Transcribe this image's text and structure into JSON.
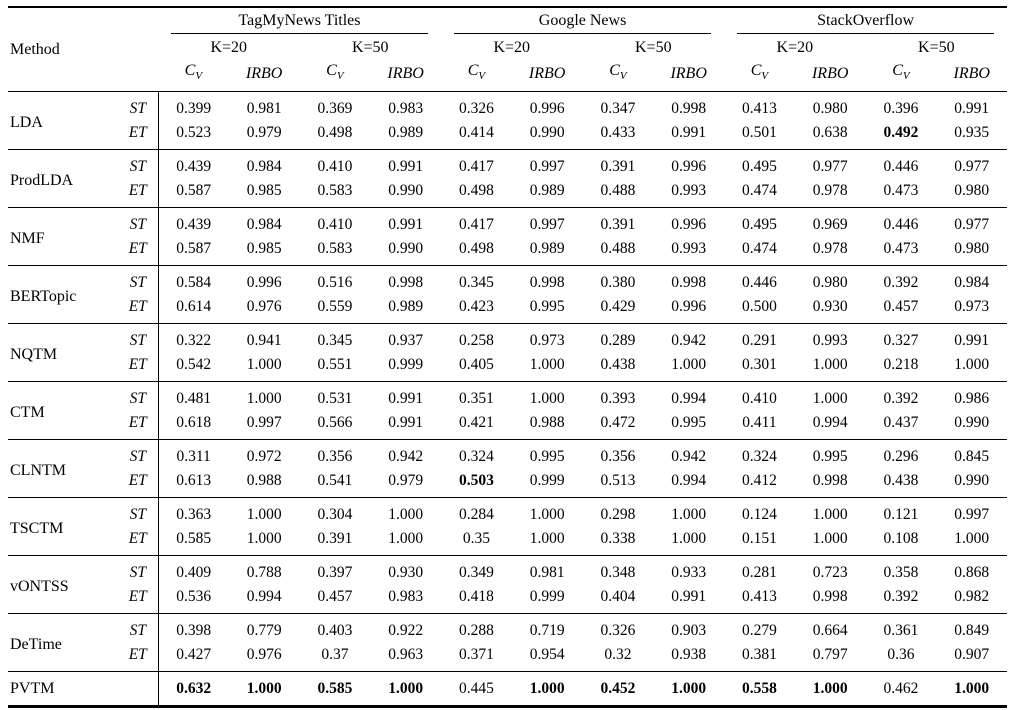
{
  "table": {
    "method_header": "Method",
    "datasets": [
      "TagMyNews Titles",
      "Google News",
      "StackOverflow"
    ],
    "k_headers": [
      "K=20",
      "K=50"
    ],
    "metrics": [
      {
        "base": "C",
        "sub": "V"
      },
      {
        "base": "IRBO",
        "sub": ""
      }
    ],
    "groups": [
      {
        "method": "LDA",
        "rows": [
          {
            "variant": "ST",
            "values": [
              "0.399",
              "0.981",
              "0.369",
              "0.983",
              "0.326",
              "0.996",
              "0.347",
              "0.998",
              "0.413",
              "0.980",
              "0.396",
              "0.991"
            ],
            "bold": []
          },
          {
            "variant": "ET",
            "values": [
              "0.523",
              "0.979",
              "0.498",
              "0.989",
              "0.414",
              "0.990",
              "0.433",
              "0.991",
              "0.501",
              "0.638",
              "0.492",
              "0.935"
            ],
            "bold": [
              10
            ]
          }
        ]
      },
      {
        "method": "ProdLDA",
        "rows": [
          {
            "variant": "ST",
            "values": [
              "0.439",
              "0.984",
              "0.410",
              "0.991",
              "0.417",
              "0.997",
              "0.391",
              "0.996",
              "0.495",
              "0.977",
              "0.446",
              "0.977"
            ],
            "bold": []
          },
          {
            "variant": "ET",
            "values": [
              "0.587",
              "0.985",
              "0.583",
              "0.990",
              "0.498",
              "0.989",
              "0.488",
              "0.993",
              "0.474",
              "0.978",
              "0.473",
              "0.980"
            ],
            "bold": []
          }
        ]
      },
      {
        "method": "NMF",
        "rows": [
          {
            "variant": "ST",
            "values": [
              "0.439",
              "0.984",
              "0.410",
              "0.991",
              "0.417",
              "0.997",
              "0.391",
              "0.996",
              "0.495",
              "0.969",
              "0.446",
              "0.977"
            ],
            "bold": []
          },
          {
            "variant": "ET",
            "values": [
              "0.587",
              "0.985",
              "0.583",
              "0.990",
              "0.498",
              "0.989",
              "0.488",
              "0.993",
              "0.474",
              "0.978",
              "0.473",
              "0.980"
            ],
            "bold": []
          }
        ]
      },
      {
        "method": "BERTopic",
        "rows": [
          {
            "variant": "ST",
            "values": [
              "0.584",
              "0.996",
              "0.516",
              "0.998",
              "0.345",
              "0.998",
              "0.380",
              "0.998",
              "0.446",
              "0.980",
              "0.392",
              "0.984"
            ],
            "bold": []
          },
          {
            "variant": "ET",
            "values": [
              "0.614",
              "0.976",
              "0.559",
              "0.989",
              "0.423",
              "0.995",
              "0.429",
              "0.996",
              "0.500",
              "0.930",
              "0.457",
              "0.973"
            ],
            "bold": []
          }
        ]
      },
      {
        "method": "NQTM",
        "rows": [
          {
            "variant": "ST",
            "values": [
              "0.322",
              "0.941",
              "0.345",
              "0.937",
              "0.258",
              "0.973",
              "0.289",
              "0.942",
              "0.291",
              "0.993",
              "0.327",
              "0.991"
            ],
            "bold": []
          },
          {
            "variant": "ET",
            "values": [
              "0.542",
              "1.000",
              "0.551",
              "0.999",
              "0.405",
              "1.000",
              "0.438",
              "1.000",
              "0.301",
              "1.000",
              "0.218",
              "1.000"
            ],
            "bold": []
          }
        ]
      },
      {
        "method": "CTM",
        "rows": [
          {
            "variant": "ST",
            "values": [
              "0.481",
              "1.000",
              "0.531",
              "0.991",
              "0.351",
              "1.000",
              "0.393",
              "0.994",
              "0.410",
              "1.000",
              "0.392",
              "0.986"
            ],
            "bold": []
          },
          {
            "variant": "ET",
            "values": [
              "0.618",
              "0.997",
              "0.566",
              "0.991",
              "0.421",
              "0.988",
              "0.472",
              "0.995",
              "0.411",
              "0.994",
              "0.437",
              "0.990"
            ],
            "bold": []
          }
        ]
      },
      {
        "method": "CLNTM",
        "rows": [
          {
            "variant": "ST",
            "values": [
              "0.311",
              "0.972",
              "0.356",
              "0.942",
              "0.324",
              "0.995",
              "0.356",
              "0.942",
              "0.324",
              "0.995",
              "0.296",
              "0.845"
            ],
            "bold": []
          },
          {
            "variant": "ET",
            "values": [
              "0.613",
              "0.988",
              "0.541",
              "0.979",
              "0.503",
              "0.999",
              "0.513",
              "0.994",
              "0.412",
              "0.998",
              "0.438",
              "0.990"
            ],
            "bold": [
              4
            ]
          }
        ]
      },
      {
        "method": "TSCTM",
        "rows": [
          {
            "variant": "ST",
            "values": [
              "0.363",
              "1.000",
              "0.304",
              "1.000",
              "0.284",
              "1.000",
              "0.298",
              "1.000",
              "0.124",
              "1.000",
              "0.121",
              "0.997"
            ],
            "bold": []
          },
          {
            "variant": "ET",
            "values": [
              "0.585",
              "1.000",
              "0.391",
              "1.000",
              "0.35",
              "1.000",
              "0.338",
              "1.000",
              "0.151",
              "1.000",
              "0.108",
              "1.000"
            ],
            "bold": []
          }
        ]
      },
      {
        "method": "vONTSS",
        "rows": [
          {
            "variant": "ST",
            "values": [
              "0.409",
              "0.788",
              "0.397",
              "0.930",
              "0.349",
              "0.981",
              "0.348",
              "0.933",
              "0.281",
              "0.723",
              "0.358",
              "0.868"
            ],
            "bold": []
          },
          {
            "variant": "ET",
            "values": [
              "0.536",
              "0.994",
              "0.457",
              "0.983",
              "0.418",
              "0.999",
              "0.404",
              "0.991",
              "0.413",
              "0.998",
              "0.392",
              "0.982"
            ],
            "bold": []
          }
        ]
      },
      {
        "method": "DeTime",
        "rows": [
          {
            "variant": "ST",
            "values": [
              "0.398",
              "0.779",
              "0.403",
              "0.922",
              "0.288",
              "0.719",
              "0.326",
              "0.903",
              "0.279",
              "0.664",
              "0.361",
              "0.849"
            ],
            "bold": []
          },
          {
            "variant": "ET",
            "values": [
              "0.427",
              "0.976",
              "0.37",
              "0.963",
              "0.371",
              "0.954",
              "0.32",
              "0.938",
              "0.381",
              "0.797",
              "0.36",
              "0.907"
            ],
            "bold": []
          }
        ]
      },
      {
        "method": "PVTM",
        "rows": [
          {
            "variant": "",
            "values": [
              "0.632",
              "1.000",
              "0.585",
              "1.000",
              "0.445",
              "1.000",
              "0.452",
              "1.000",
              "0.558",
              "1.000",
              "0.462",
              "1.000"
            ],
            "bold": [
              0,
              1,
              2,
              3,
              5,
              6,
              7,
              8,
              9,
              11
            ]
          }
        ]
      }
    ]
  }
}
